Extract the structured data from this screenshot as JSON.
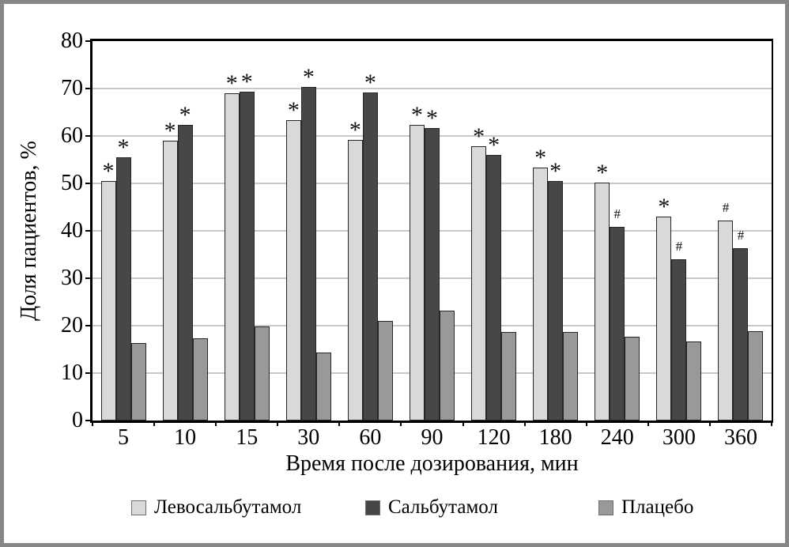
{
  "chart_data": {
    "type": "bar",
    "title": "",
    "xlabel": "Время после дозирования, мин",
    "ylabel": "Доля пациентов, %",
    "categories": [
      "5",
      "10",
      "15",
      "30",
      "60",
      "90",
      "120",
      "180",
      "240",
      "300",
      "360"
    ],
    "ylim": [
      0,
      80
    ],
    "ytick_step": 10,
    "y_ticks": [
      "0",
      "10",
      "20",
      "30",
      "40",
      "50",
      "60",
      "70",
      "80"
    ],
    "grid": true,
    "legend_position": "bottom",
    "series": [
      {
        "name": "Левосальбутамол",
        "color": "#d9d9d9",
        "values": [
          50.5,
          59,
          69,
          63.3,
          59.2,
          62.3,
          57.8,
          53.3,
          50.2,
          43,
          42.2
        ],
        "annotations": [
          "*",
          "*",
          "*",
          "*",
          "*",
          "*",
          "*",
          "*",
          "*",
          "*",
          "#"
        ]
      },
      {
        "name": "Сальбутамол",
        "color": "#474747",
        "values": [
          55.5,
          62.4,
          69.3,
          70.3,
          69.2,
          61.7,
          56,
          50.5,
          40.8,
          34,
          36.4
        ],
        "annotations": [
          "*",
          "*",
          "*",
          "*",
          "*",
          "*",
          "*",
          "*",
          "#",
          "#",
          "#"
        ]
      },
      {
        "name": "Плацебо",
        "color": "#999999",
        "values": [
          16.3,
          17.4,
          19.8,
          14.4,
          21,
          23.2,
          18.7,
          18.7,
          17.6,
          16.7,
          18.8
        ],
        "annotations": [
          "",
          "",
          "",
          "",
          "",
          "",
          "",
          "",
          "",
          "",
          ""
        ]
      }
    ],
    "colors": {
      "grid": "#c9c9c9",
      "frame": "#000000",
      "outer_border": "#868686",
      "bar_border": "#262626"
    }
  }
}
